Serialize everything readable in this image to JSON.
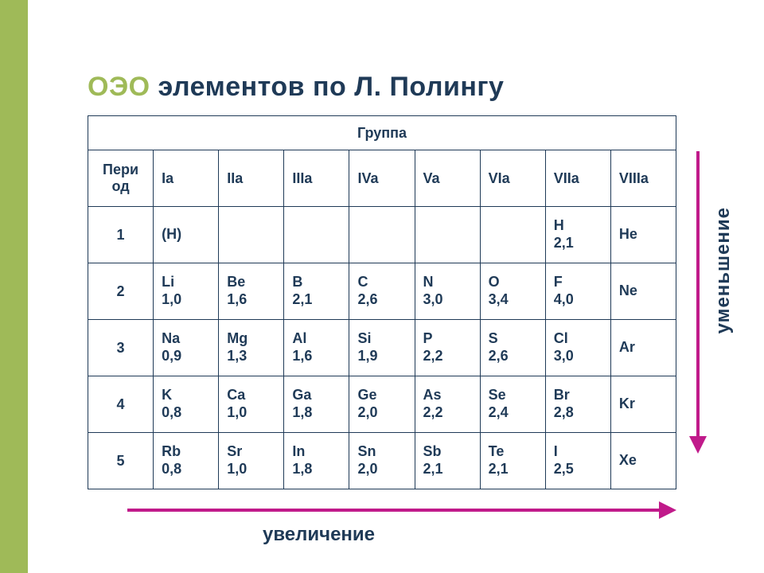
{
  "title": {
    "accent": "ОЭО",
    "rest": "   элементов по Л. Полингу"
  },
  "colors": {
    "sidebar": "#9fba58",
    "arrow": "#c01a8a",
    "text": "#1f3a57",
    "table_border": "#1f3a57",
    "background": "#ffffff"
  },
  "typography": {
    "title_fontsize_pt": 26,
    "cell_fontsize_pt": 13,
    "label_fontsize_pt": 18,
    "font_family": "Arial",
    "font_weight": "bold"
  },
  "table": {
    "group_header": "Группа",
    "period_header": "Пери\nод",
    "columns": [
      "Ia",
      "IIa",
      "IIIa",
      "IVa",
      "Va",
      "VIa",
      "VIIa",
      "VIIIa"
    ],
    "periods": [
      "1",
      "2",
      "3",
      "4",
      "5"
    ],
    "rows": [
      [
        {
          "sym": "(H)",
          "val": ""
        },
        null,
        null,
        null,
        null,
        null,
        {
          "sym": "H",
          "val": "2,1"
        },
        {
          "sym": "He",
          "val": ""
        }
      ],
      [
        {
          "sym": "Li",
          "val": "1,0"
        },
        {
          "sym": "Be",
          "val": "1,6"
        },
        {
          "sym": "B",
          "val": "2,1"
        },
        {
          "sym": "C",
          "val": "2,6"
        },
        {
          "sym": "N",
          "val": "3,0"
        },
        {
          "sym": "O",
          "val": "3,4"
        },
        {
          "sym": "F",
          "val": "4,0"
        },
        {
          "sym": "Ne",
          "val": ""
        }
      ],
      [
        {
          "sym": "Na",
          "val": "0,9"
        },
        {
          "sym": "Mg",
          "val": "1,3"
        },
        {
          "sym": "Al",
          "val": "1,6"
        },
        {
          "sym": "Si",
          "val": "1,9"
        },
        {
          "sym": "P",
          "val": "2,2"
        },
        {
          "sym": "S",
          "val": "2,6"
        },
        {
          "sym": "Cl",
          "val": "3,0"
        },
        {
          "sym": "Ar",
          "val": ""
        }
      ],
      [
        {
          "sym": "K",
          "val": "0,8"
        },
        {
          "sym": "Ca",
          "val": "1,0"
        },
        {
          "sym": "Ga",
          "val": "1,8"
        },
        {
          "sym": "Ge",
          "val": "2,0"
        },
        {
          "sym": "As",
          "val": "2,2"
        },
        {
          "sym": "Se",
          "val": "2,4"
        },
        {
          "sym": "Br",
          "val": "2,8"
        },
        {
          "sym": "Kr",
          "val": ""
        }
      ],
      [
        {
          "sym": "Rb",
          "val": "0,8"
        },
        {
          "sym": "Sr",
          "val": "1,0"
        },
        {
          "sym": "In",
          "val": "1,8"
        },
        {
          "sym": "Sn",
          "val": "2,0"
        },
        {
          "sym": "Sb",
          "val": "2,1"
        },
        {
          "sym": "Te",
          "val": "2,1"
        },
        {
          "sym": "I",
          "val": "2,5"
        },
        {
          "sym": "Xe",
          "val": ""
        }
      ]
    ]
  },
  "labels": {
    "bottom": "увеличение",
    "right": "уменьшение"
  }
}
